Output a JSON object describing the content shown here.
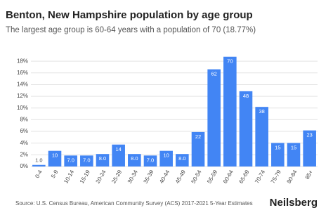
{
  "chart_data": {
    "type": "bar",
    "title": "Benton, New Hampshire population by age group",
    "subtitle": "The largest age group is 60-64 years with a population of 70 (18.77%)",
    "categories": [
      "0-4",
      "5-9",
      "10-14",
      "15-19",
      "20-24",
      "25-29",
      "30-34",
      "35-39",
      "40-44",
      "45-49",
      "50-54",
      "55-59",
      "60-64",
      "65-69",
      "70-74",
      "75-79",
      "80-84",
      "85+"
    ],
    "values": [
      0.27,
      2.68,
      1.88,
      1.88,
      2.14,
      3.75,
      2.14,
      1.88,
      2.68,
      2.14,
      5.9,
      16.62,
      18.77,
      12.87,
      10.19,
      4.02,
      4.02,
      6.17
    ],
    "population_labels": [
      "1.0",
      "10",
      "7.0",
      "7.0",
      "8.0",
      "14",
      "8.0",
      "7.0",
      "10",
      "8.0",
      "22",
      "62",
      "70",
      "48",
      "38",
      "15",
      "15",
      "23"
    ],
    "color": "#4285f4",
    "ylim": [
      0,
      19.1
    ],
    "yticks": [
      {
        "value": 0,
        "label": "0%"
      },
      {
        "value": 2,
        "label": "2%"
      },
      {
        "value": 4,
        "label": "4%"
      },
      {
        "value": 6,
        "label": "6%"
      },
      {
        "value": 8,
        "label": "8%"
      },
      {
        "value": 10,
        "label": "10%"
      },
      {
        "value": 12,
        "label": "12%"
      },
      {
        "value": 14,
        "label": "14%"
      },
      {
        "value": 16,
        "label": "16%"
      },
      {
        "value": 18,
        "label": "18%"
      }
    ],
    "grid": true,
    "source": "Source: U.S. Census Bureau, American Community Survey (ACS) 2017-2021 5-Year Estimates",
    "brand": "Neilsberg"
  }
}
